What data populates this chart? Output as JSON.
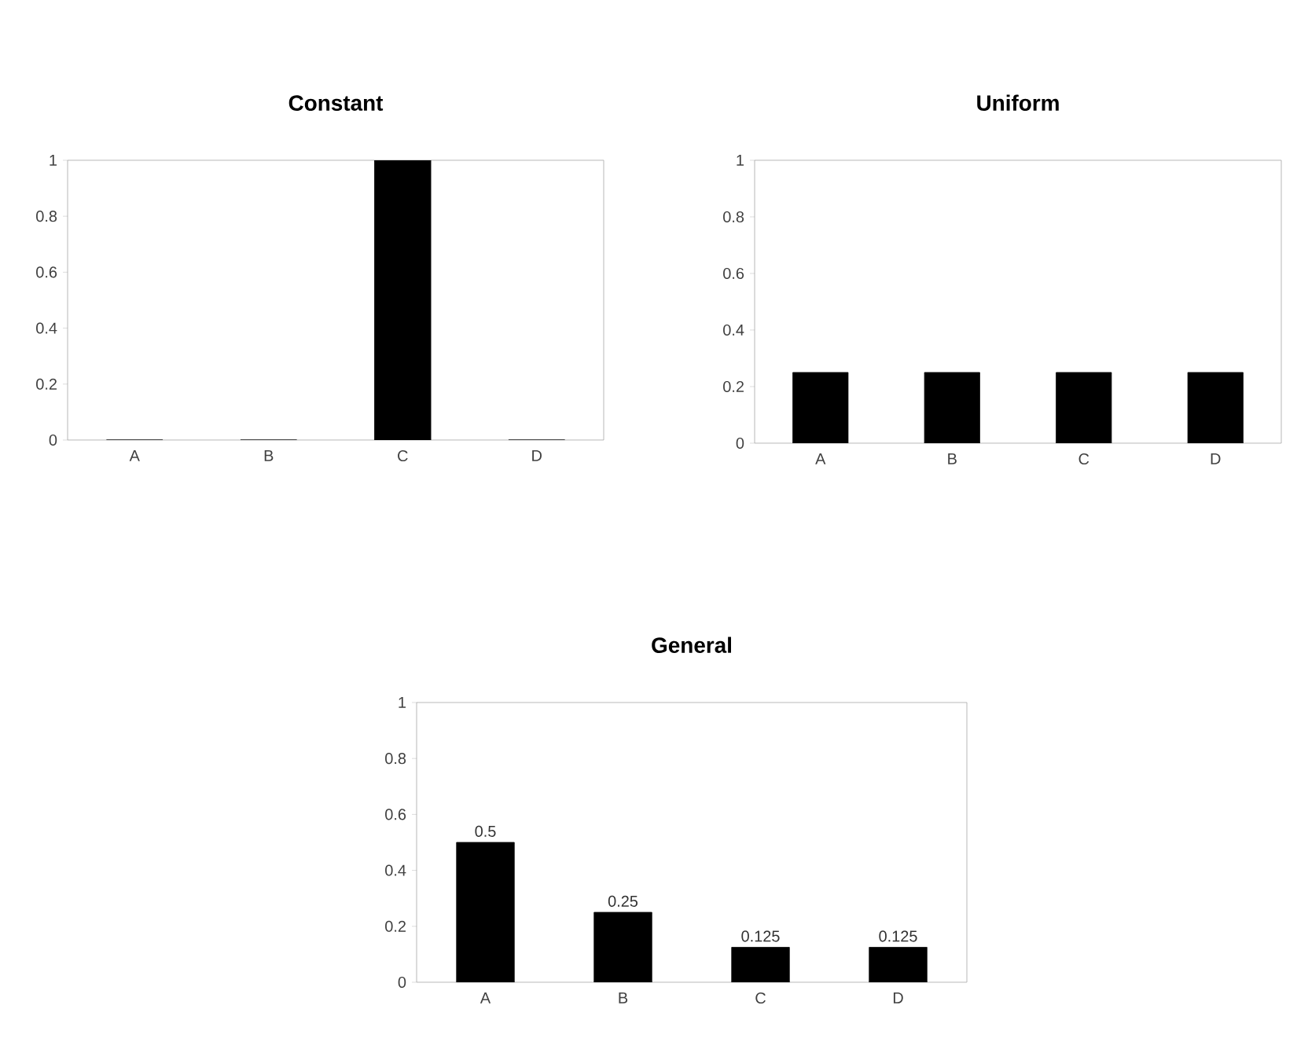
{
  "chart_data": [
    {
      "type": "bar",
      "title": "Constant",
      "categories": [
        "A",
        "B",
        "C",
        "D"
      ],
      "values": [
        0,
        0,
        1,
        0
      ],
      "color": "#000000",
      "ylim": [
        0,
        1
      ],
      "yticks": [
        0,
        0.2,
        0.4,
        0.6,
        0.8,
        1
      ]
    },
    {
      "type": "bar",
      "title": "Uniform",
      "categories": [
        "A",
        "B",
        "C",
        "D"
      ],
      "values": [
        0.25,
        0.25,
        0.25,
        0.25
      ],
      "color": "#000000",
      "ylim": [
        0,
        1
      ],
      "yticks": [
        0,
        0.2,
        0.4,
        0.6,
        0.8,
        1
      ]
    },
    {
      "type": "bar",
      "title": "General",
      "categories": [
        "A",
        "B",
        "C",
        "D"
      ],
      "values": [
        0.5,
        0.25,
        0.125,
        0.125
      ],
      "color": "#000000",
      "ylim": [
        0,
        1
      ],
      "yticks": [
        0,
        0.2,
        0.4,
        0.6,
        0.8,
        1
      ],
      "data_labels": true
    }
  ]
}
